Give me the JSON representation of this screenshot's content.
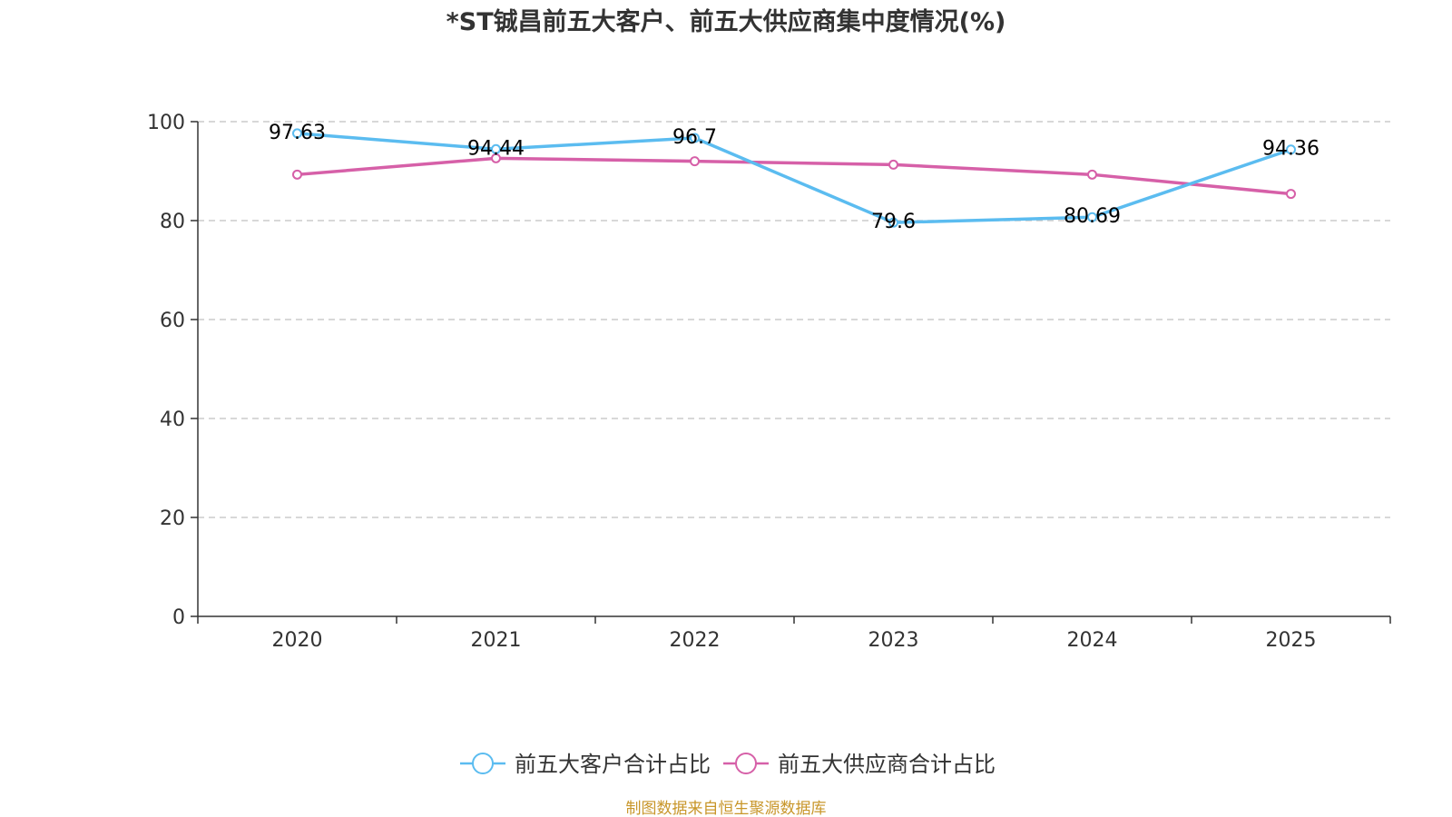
{
  "chart_data": {
    "type": "line",
    "title": "*ST铖昌前五大客户、前五大供应商集中度情况(%)",
    "categories": [
      "2020",
      "2021",
      "2022",
      "2023",
      "2024",
      "2025"
    ],
    "ylim": [
      0,
      100
    ],
    "yticks": [
      0,
      20,
      40,
      60,
      80,
      100
    ],
    "grid": true,
    "legend_position": "bottom",
    "series": [
      {
        "name": "前五大客户合计占比",
        "values": [
          97.63,
          94.44,
          96.7,
          79.6,
          80.69,
          94.36
        ],
        "labels": [
          "97.63",
          "94.44",
          "96.7",
          "79.6",
          "80.69",
          "94.36"
        ],
        "color": "#5bbcf0"
      },
      {
        "name": "前五大供应商合计占比",
        "values": [
          89.3,
          92.6,
          92.0,
          91.3,
          89.3,
          85.4
        ],
        "labels": [],
        "color": "#d660a8"
      }
    ]
  },
  "source": {
    "text": "制图数据来自恒生聚源数据库",
    "color": "#c8962a"
  }
}
